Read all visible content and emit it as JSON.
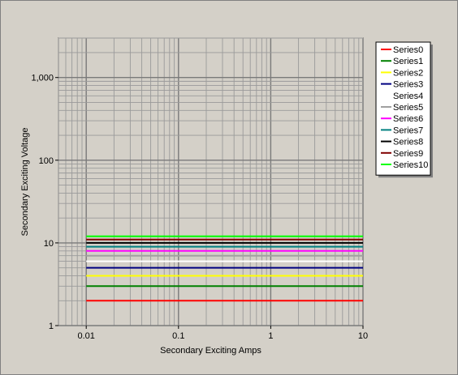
{
  "chart_data": {
    "type": "line",
    "xlabel": "Secondary Exciting Amps",
    "ylabel": "Secondary Exciting Voltage",
    "xscale": "log",
    "yscale": "log",
    "xlim": [
      0.005,
      10
    ],
    "ylim": [
      1,
      3000
    ],
    "x_ticks": [
      {
        "value": 0.01,
        "label": "0.01"
      },
      {
        "value": 0.1,
        "label": "0.1"
      },
      {
        "value": 1,
        "label": "1"
      },
      {
        "value": 10,
        "label": "10"
      }
    ],
    "y_ticks": [
      {
        "value": 1,
        "label": "1"
      },
      {
        "value": 10,
        "label": "10"
      },
      {
        "value": 100,
        "label": "100"
      },
      {
        "value": 1000,
        "label": "1,000"
      }
    ],
    "grid": true,
    "legend_position": "right",
    "x": [
      0.01,
      10
    ],
    "series": [
      {
        "name": "Series0",
        "color": "#ff0000",
        "values": [
          2,
          2
        ]
      },
      {
        "name": "Series1",
        "color": "#008000",
        "values": [
          3,
          3
        ]
      },
      {
        "name": "Series2",
        "color": "#ffff00",
        "values": [
          4,
          4
        ]
      },
      {
        "name": "Series3",
        "color": "#000080",
        "values": [
          5,
          5
        ]
      },
      {
        "name": "Series4",
        "color": "#ffffff",
        "values": [
          6,
          6
        ]
      },
      {
        "name": "Series5",
        "color": "#a0a0a0",
        "values": [
          7,
          7
        ]
      },
      {
        "name": "Series6",
        "color": "#ff00ff",
        "values": [
          8,
          8
        ]
      },
      {
        "name": "Series7",
        "color": "#008080",
        "values": [
          9,
          9
        ]
      },
      {
        "name": "Series8",
        "color": "#000000",
        "values": [
          10,
          10
        ]
      },
      {
        "name": "Series9",
        "color": "#800000",
        "values": [
          11,
          11
        ]
      },
      {
        "name": "Series10",
        "color": "#00ff00",
        "values": [
          12,
          12
        ]
      }
    ]
  }
}
